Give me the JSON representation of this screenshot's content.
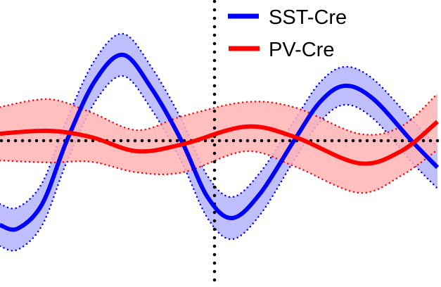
{
  "chart_data": {
    "type": "line",
    "title": "",
    "xlabel": "",
    "ylabel": "",
    "xlim": [
      -3.05,
      3.22
    ],
    "ylim": [
      -2.08,
      2.0
    ],
    "grid": false,
    "reference_lines": {
      "horizontal_y": 0,
      "vertical_x": 0
    },
    "legend": {
      "placement": "top-right"
    },
    "series": [
      {
        "name": "SST-Cre",
        "color": "#0000ff",
        "band_color": "#b4b4ff",
        "x": [
          -3.05,
          -2.8,
          -2.45,
          -2.1,
          -1.7,
          -1.3,
          -0.9,
          -0.47,
          -0.1,
          0.25,
          0.65,
          1.13,
          1.5,
          1.85,
          2.25,
          2.8,
          3.17
        ],
        "y": [
          -1.2,
          -1.25,
          -0.9,
          0.0,
          0.85,
          1.22,
          0.75,
          0.0,
          -0.8,
          -1.1,
          -0.75,
          0.0,
          0.55,
          0.78,
          0.6,
          0.0,
          -0.38
        ],
        "err": [
          0.3,
          0.3,
          0.3,
          0.3,
          0.3,
          0.3,
          0.3,
          0.3,
          0.3,
          0.3,
          0.3,
          0.28,
          0.28,
          0.27,
          0.28,
          0.3,
          0.3
        ]
      },
      {
        "name": "PV-Cre",
        "color": "#ff0000",
        "band_color": "#ffb4b4",
        "x": [
          -3.05,
          -2.35,
          -1.75,
          -1.1,
          -0.45,
          0.45,
          1.15,
          2.05,
          2.65,
          3.17
        ],
        "y": [
          0.1,
          0.14,
          0.05,
          -0.15,
          -0.05,
          0.2,
          0.05,
          -0.32,
          -0.15,
          0.27
        ],
        "err": [
          0.38,
          0.45,
          0.35,
          0.3,
          0.4,
          0.35,
          0.42,
          0.42,
          0.35,
          0.4
        ]
      }
    ]
  }
}
